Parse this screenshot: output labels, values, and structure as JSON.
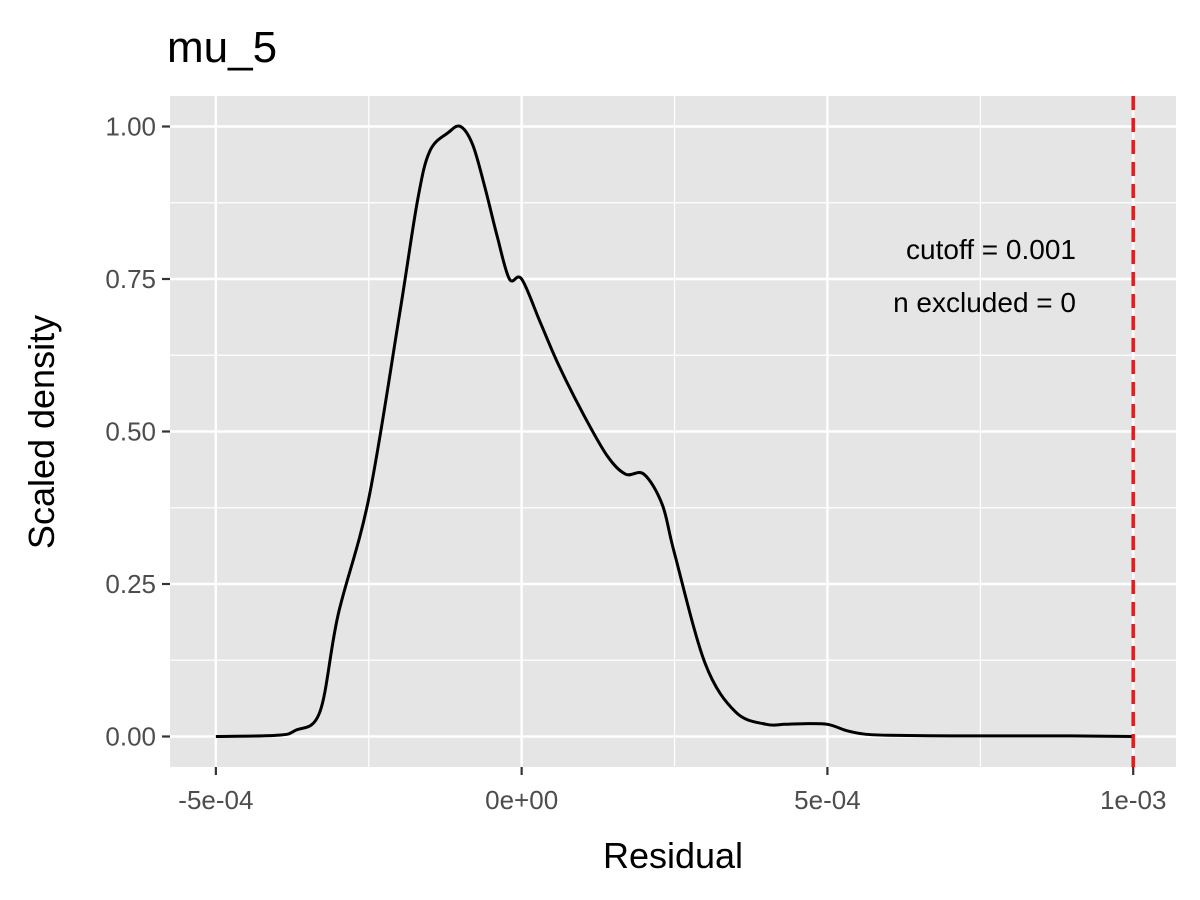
{
  "chart_data": {
    "type": "line",
    "title": "mu_5",
    "xlabel": "Residual",
    "ylabel": "Scaled density",
    "xlim": [
      -0.000575,
      0.00107
    ],
    "ylim": [
      -0.05,
      1.05
    ],
    "x_ticks": [
      -0.0005,
      0.0,
      0.0005,
      0.001
    ],
    "x_tick_labels": [
      "-5e-04",
      "0e+00",
      "5e-04",
      "1e-03"
    ],
    "x_minor_ticks": [
      -0.00025,
      0.00025,
      0.00075
    ],
    "y_ticks": [
      0,
      0.25,
      0.5,
      0.75,
      1.0
    ],
    "y_tick_labels": [
      "0.00",
      "0.25",
      "0.50",
      "0.75",
      "1.00"
    ],
    "y_minor_ticks": [
      0.125,
      0.375,
      0.625,
      0.875
    ],
    "grid": true,
    "cutoff": {
      "value": 0.001,
      "color": "#e41a1c",
      "style": "dashed"
    },
    "annotations": [
      "cutoff = 0.001",
      "n excluded = 0"
    ],
    "series": [
      {
        "name": "density",
        "color": "#000000",
        "x": [
          -0.0005,
          -0.0004,
          -0.00037,
          -0.00033,
          -0.0003,
          -0.00025,
          -0.0002,
          -0.00017,
          -0.00015,
          -0.00012,
          -0.0001,
          -8e-05,
          -6e-05,
          -4e-05,
          -2e-05,
          0.0,
          3e-05,
          6e-05,
          0.0001,
          0.00014,
          0.00017,
          0.0002,
          0.00023,
          0.00025,
          0.0003,
          0.00035,
          0.0004,
          0.00043,
          0.00046,
          0.0005,
          0.00053,
          0.00056,
          0.0006,
          0.0007,
          0.0008,
          0.0009,
          0.001
        ],
        "y": [
          0.0,
          0.002,
          0.01,
          0.04,
          0.2,
          0.39,
          0.69,
          0.88,
          0.96,
          0.99,
          1.0,
          0.97,
          0.9,
          0.82,
          0.75,
          0.75,
          0.68,
          0.61,
          0.53,
          0.46,
          0.43,
          0.43,
          0.38,
          0.3,
          0.12,
          0.04,
          0.02,
          0.02,
          0.021,
          0.02,
          0.01,
          0.004,
          0.002,
          0.001,
          0.001,
          0.001,
          0.0
        ]
      }
    ]
  }
}
